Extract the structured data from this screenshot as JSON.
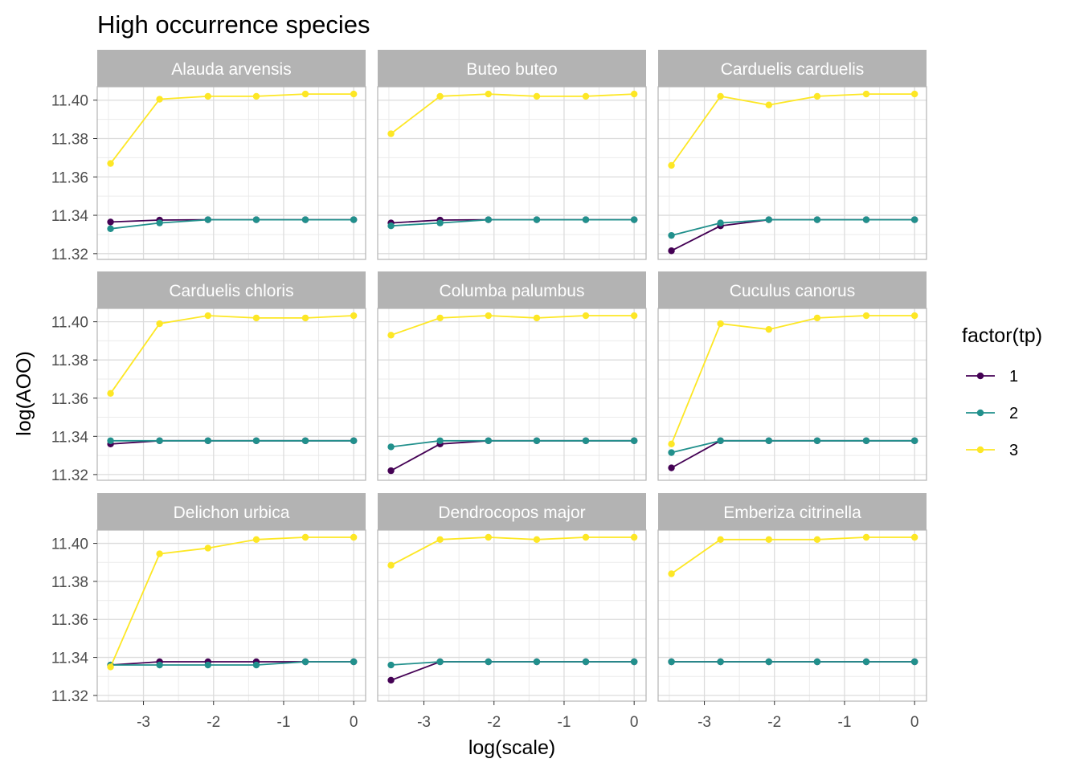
{
  "chart_data": {
    "type": "line",
    "title": "High occurrence species",
    "xlabel": "log(scale)",
    "ylabel": "log(AOO)",
    "x": [
      -3.47,
      -2.77,
      -2.08,
      -1.39,
      -0.69,
      0
    ],
    "xlim": [
      -3.66,
      0.17
    ],
    "ylim": [
      11.317,
      11.407
    ],
    "x_ticks": [
      -3,
      -2,
      -1,
      0
    ],
    "y_ticks": [
      11.32,
      11.34,
      11.36,
      11.38,
      11.4
    ],
    "x_tick_labels": [
      "-3",
      "-2",
      "-1",
      "0"
    ],
    "y_tick_labels": [
      "11.32",
      "11.34",
      "11.36",
      "11.38",
      "11.40"
    ],
    "grid": true,
    "layout": "3x3 facets",
    "legend": {
      "title": "factor(tp)",
      "position": "right",
      "entries": [
        {
          "label": "1",
          "color": "#440154"
        },
        {
          "label": "2",
          "color": "#21908C"
        },
        {
          "label": "3",
          "color": "#FDE725"
        }
      ]
    },
    "panels": [
      {
        "name": "Alauda arvensis",
        "series": [
          {
            "name": "1",
            "values": [
              11.3365,
              11.3375,
              11.3377,
              11.3377,
              11.3377,
              11.3377
            ]
          },
          {
            "name": "2",
            "values": [
              11.333,
              11.336,
              11.3377,
              11.3377,
              11.3377,
              11.3377
            ]
          },
          {
            "name": "3",
            "values": [
              11.367,
              11.4005,
              11.402,
              11.402,
              11.4032,
              11.4032
            ]
          }
        ]
      },
      {
        "name": "Buteo buteo",
        "series": [
          {
            "name": "1",
            "values": [
              11.336,
              11.3375,
              11.3377,
              11.3377,
              11.3377,
              11.3377
            ]
          },
          {
            "name": "2",
            "values": [
              11.3345,
              11.336,
              11.3377,
              11.3377,
              11.3377,
              11.3377
            ]
          },
          {
            "name": "3",
            "values": [
              11.3825,
              11.402,
              11.4032,
              11.402,
              11.402,
              11.4032
            ]
          }
        ]
      },
      {
        "name": "Carduelis carduelis",
        "series": [
          {
            "name": "1",
            "values": [
              11.3215,
              11.3345,
              11.3377,
              11.3377,
              11.3377,
              11.3377
            ]
          },
          {
            "name": "2",
            "values": [
              11.3295,
              11.336,
              11.3377,
              11.3377,
              11.3377,
              11.3377
            ]
          },
          {
            "name": "3",
            "values": [
              11.366,
              11.402,
              11.3975,
              11.402,
              11.4032,
              11.4032
            ]
          }
        ]
      },
      {
        "name": "Carduelis chloris",
        "series": [
          {
            "name": "1",
            "values": [
              11.336,
              11.3377,
              11.3377,
              11.3377,
              11.3377,
              11.3377
            ]
          },
          {
            "name": "2",
            "values": [
              11.3377,
              11.3377,
              11.3377,
              11.3377,
              11.3377,
              11.3377
            ]
          },
          {
            "name": "3",
            "values": [
              11.3625,
              11.399,
              11.4032,
              11.402,
              11.402,
              11.4032
            ]
          }
        ]
      },
      {
        "name": "Columba palumbus",
        "series": [
          {
            "name": "1",
            "values": [
              11.322,
              11.336,
              11.3377,
              11.3377,
              11.3377,
              11.3377
            ]
          },
          {
            "name": "2",
            "values": [
              11.3345,
              11.3377,
              11.3377,
              11.3377,
              11.3377,
              11.3377
            ]
          },
          {
            "name": "3",
            "values": [
              11.393,
              11.402,
              11.4032,
              11.402,
              11.4032,
              11.4032
            ]
          }
        ]
      },
      {
        "name": "Cuculus canorus",
        "series": [
          {
            "name": "1",
            "values": [
              11.3235,
              11.3377,
              11.3377,
              11.3377,
              11.3377,
              11.3377
            ]
          },
          {
            "name": "2",
            "values": [
              11.3315,
              11.3377,
              11.3377,
              11.3377,
              11.3377,
              11.3377
            ]
          },
          {
            "name": "3",
            "values": [
              11.336,
              11.399,
              11.396,
              11.402,
              11.4032,
              11.4032
            ]
          }
        ]
      },
      {
        "name": "Delichon urbica",
        "series": [
          {
            "name": "1",
            "values": [
              11.336,
              11.3377,
              11.3377,
              11.3377,
              11.3377,
              11.3377
            ]
          },
          {
            "name": "2",
            "values": [
              11.336,
              11.336,
              11.336,
              11.336,
              11.3377,
              11.3377
            ]
          },
          {
            "name": "3",
            "values": [
              11.335,
              11.3945,
              11.3975,
              11.402,
              11.4032,
              11.4032
            ]
          }
        ]
      },
      {
        "name": "Dendrocopos major",
        "series": [
          {
            "name": "1",
            "values": [
              11.328,
              11.3377,
              11.3377,
              11.3377,
              11.3377,
              11.3377
            ]
          },
          {
            "name": "2",
            "values": [
              11.336,
              11.3377,
              11.3377,
              11.3377,
              11.3377,
              11.3377
            ]
          },
          {
            "name": "3",
            "values": [
              11.3885,
              11.402,
              11.4032,
              11.402,
              11.4032,
              11.4032
            ]
          }
        ]
      },
      {
        "name": "Emberiza citrinella",
        "series": [
          {
            "name": "1",
            "values": [
              11.3377,
              11.3377,
              11.3377,
              11.3377,
              11.3377,
              11.3377
            ]
          },
          {
            "name": "2",
            "values": [
              11.3377,
              11.3377,
              11.3377,
              11.3377,
              11.3377,
              11.3377
            ]
          },
          {
            "name": "3",
            "values": [
              11.384,
              11.402,
              11.402,
              11.402,
              11.4032,
              11.4032
            ]
          }
        ]
      }
    ]
  }
}
